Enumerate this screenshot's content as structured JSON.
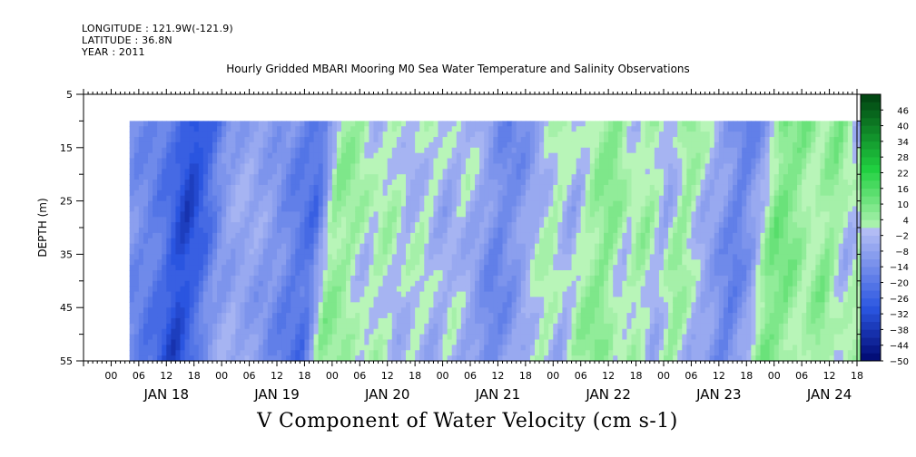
{
  "header": {
    "longitude": "LONGITUDE : 121.9W(-121.9)",
    "latitude": "LATITUDE : 36.8N",
    "year": "YEAR : 2011"
  },
  "title": "Hourly Gridded MBARI Mooring M0 Sea Water Temperature and Salinity Observations",
  "bottom_title": "V Component of Water Velocity (cm s-1)",
  "chart_data": {
    "type": "heatmap",
    "xlabel": "",
    "ylabel": "DEPTH (m)",
    "y_ticks": [
      5,
      15,
      25,
      35,
      45,
      55
    ],
    "y_range": [
      5,
      55
    ],
    "y_inverted": true,
    "x_hour_ticks": [
      "00",
      "06",
      "12",
      "18",
      "00",
      "06",
      "12",
      "18",
      "00",
      "06",
      "12",
      "18",
      "00",
      "06",
      "12",
      "18",
      "00",
      "06",
      "12",
      "18",
      "00",
      "06",
      "12",
      "18",
      "00",
      "06",
      "12",
      "18"
    ],
    "x_day_labels": [
      "JAN 18",
      "JAN 19",
      "JAN 20",
      "JAN 21",
      "JAN 22",
      "JAN 23",
      "JAN 24"
    ],
    "data_time_range_hours": [
      4,
      165
    ],
    "data_depth_range_m": [
      10,
      55
    ],
    "colorbar": {
      "labels": [
        "46",
        "40",
        "34",
        "28",
        "22",
        "16",
        "10",
        "4",
        "-2",
        "-8",
        "-14",
        "-20",
        "-26",
        "-32",
        "-38",
        "-44",
        "-50"
      ],
      "range": [
        -50,
        52
      ],
      "step": 3,
      "colors": {
        "neg_strong": "#000870",
        "neg_mid": "#2a55e0",
        "neg_light": "#b4bef4",
        "pos_light": "#b8f5b8",
        "pos_mid": "#20d040",
        "pos_strong": "#004010"
      }
    },
    "velocity_profile": [
      {
        "t": 4,
        "v": -12
      },
      {
        "t": 10,
        "v": -16
      },
      {
        "t": 14,
        "v": -22
      },
      {
        "t": 18,
        "v": -34
      },
      {
        "t": 22,
        "v": -24
      },
      {
        "t": 26,
        "v": -10
      },
      {
        "t": 30,
        "v": -6
      },
      {
        "t": 34,
        "v": -8
      },
      {
        "t": 38,
        "v": -12
      },
      {
        "t": 42,
        "v": -18
      },
      {
        "t": 46,
        "v": -22
      },
      {
        "t": 50,
        "v": 6
      },
      {
        "t": 54,
        "v": 4
      },
      {
        "t": 58,
        "v": -2
      },
      {
        "t": 62,
        "v": 2
      },
      {
        "t": 66,
        "v": -4
      },
      {
        "t": 70,
        "v": 0
      },
      {
        "t": 74,
        "v": -6
      },
      {
        "t": 78,
        "v": -2
      },
      {
        "t": 82,
        "v": -8
      },
      {
        "t": 86,
        "v": -16
      },
      {
        "t": 90,
        "v": -12
      },
      {
        "t": 94,
        "v": -4
      },
      {
        "t": 98,
        "v": 2
      },
      {
        "t": 102,
        "v": -6
      },
      {
        "t": 106,
        "v": 4
      },
      {
        "t": 110,
        "v": 8
      },
      {
        "t": 114,
        "v": -2
      },
      {
        "t": 118,
        "v": 4
      },
      {
        "t": 122,
        "v": -6
      },
      {
        "t": 126,
        "v": 6
      },
      {
        "t": 130,
        "v": -4
      },
      {
        "t": 134,
        "v": -10
      },
      {
        "t": 138,
        "v": -18
      },
      {
        "t": 142,
        "v": -8
      },
      {
        "t": 146,
        "v": 10
      },
      {
        "t": 150,
        "v": 8
      },
      {
        "t": 154,
        "v": 0
      },
      {
        "t": 158,
        "v": 8
      },
      {
        "t": 162,
        "v": -4
      },
      {
        "t": 165,
        "v": 2
      }
    ]
  }
}
